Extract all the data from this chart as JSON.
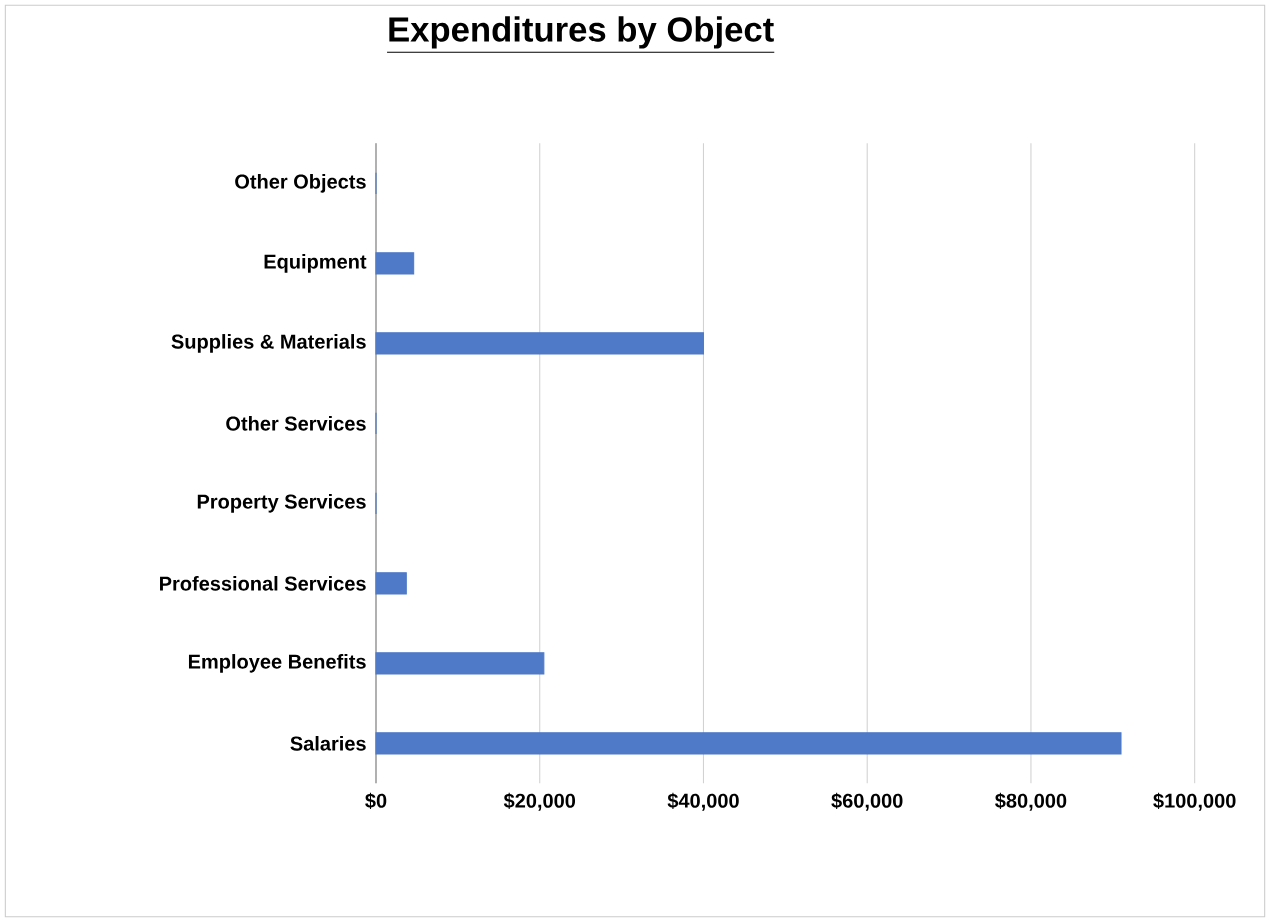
{
  "chart_data": {
    "type": "bar",
    "orientation": "horizontal",
    "title": "Expenditures by Object",
    "categories": [
      "Other Objects",
      "Equipment",
      "Supplies & Materials",
      "Other Services",
      "Property Services",
      "Professional Services",
      "Employee Benefits",
      "Salaries"
    ],
    "values": [
      0,
      4600,
      40000,
      0,
      0,
      3700,
      20500,
      91000
    ],
    "color": "#4f7ac7",
    "xlim": [
      0,
      100000
    ],
    "xticks": [
      {
        "value": 0,
        "label": "$0"
      },
      {
        "value": 20000,
        "label": "$20,000"
      },
      {
        "value": 40000,
        "label": "$40,000"
      },
      {
        "value": 60000,
        "label": "$60,000"
      },
      {
        "value": 80000,
        "label": "$80,000"
      },
      {
        "value": 100000,
        "label": "$100,000"
      }
    ],
    "grid": "x"
  }
}
